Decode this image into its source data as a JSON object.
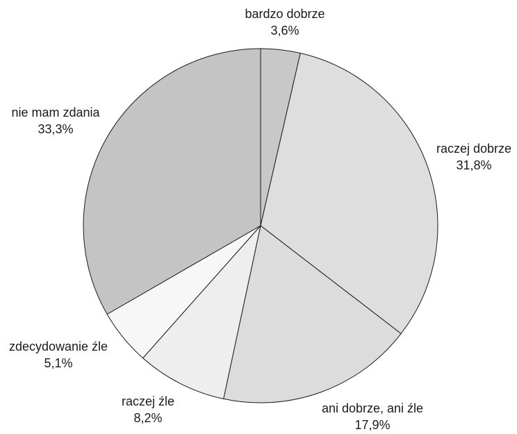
{
  "chart_data": {
    "type": "pie",
    "title": "",
    "start_angle_deg": 0,
    "direction": "clockwise",
    "slices": [
      {
        "label": "bardzo dobrze",
        "value": 3.6,
        "value_label": "3,6%",
        "color": "#c8c8c8"
      },
      {
        "label": "raczej dobrze",
        "value": 31.8,
        "value_label": "31,8%",
        "color": "#dedede"
      },
      {
        "label": "ani dobrze, ani źle",
        "value": 17.9,
        "value_label": "17,9%",
        "color": "#dcdcdc"
      },
      {
        "label": "raczej źle",
        "value": 8.2,
        "value_label": "8,2%",
        "color": "#eeeeee"
      },
      {
        "label": "zdecydowanie źle",
        "value": 5.1,
        "value_label": "5,1%",
        "color": "#f7f7f7"
      },
      {
        "label": "nie mam zdania",
        "value": 33.3,
        "value_label": "33,3%",
        "color": "#c4c4c4"
      }
    ]
  }
}
